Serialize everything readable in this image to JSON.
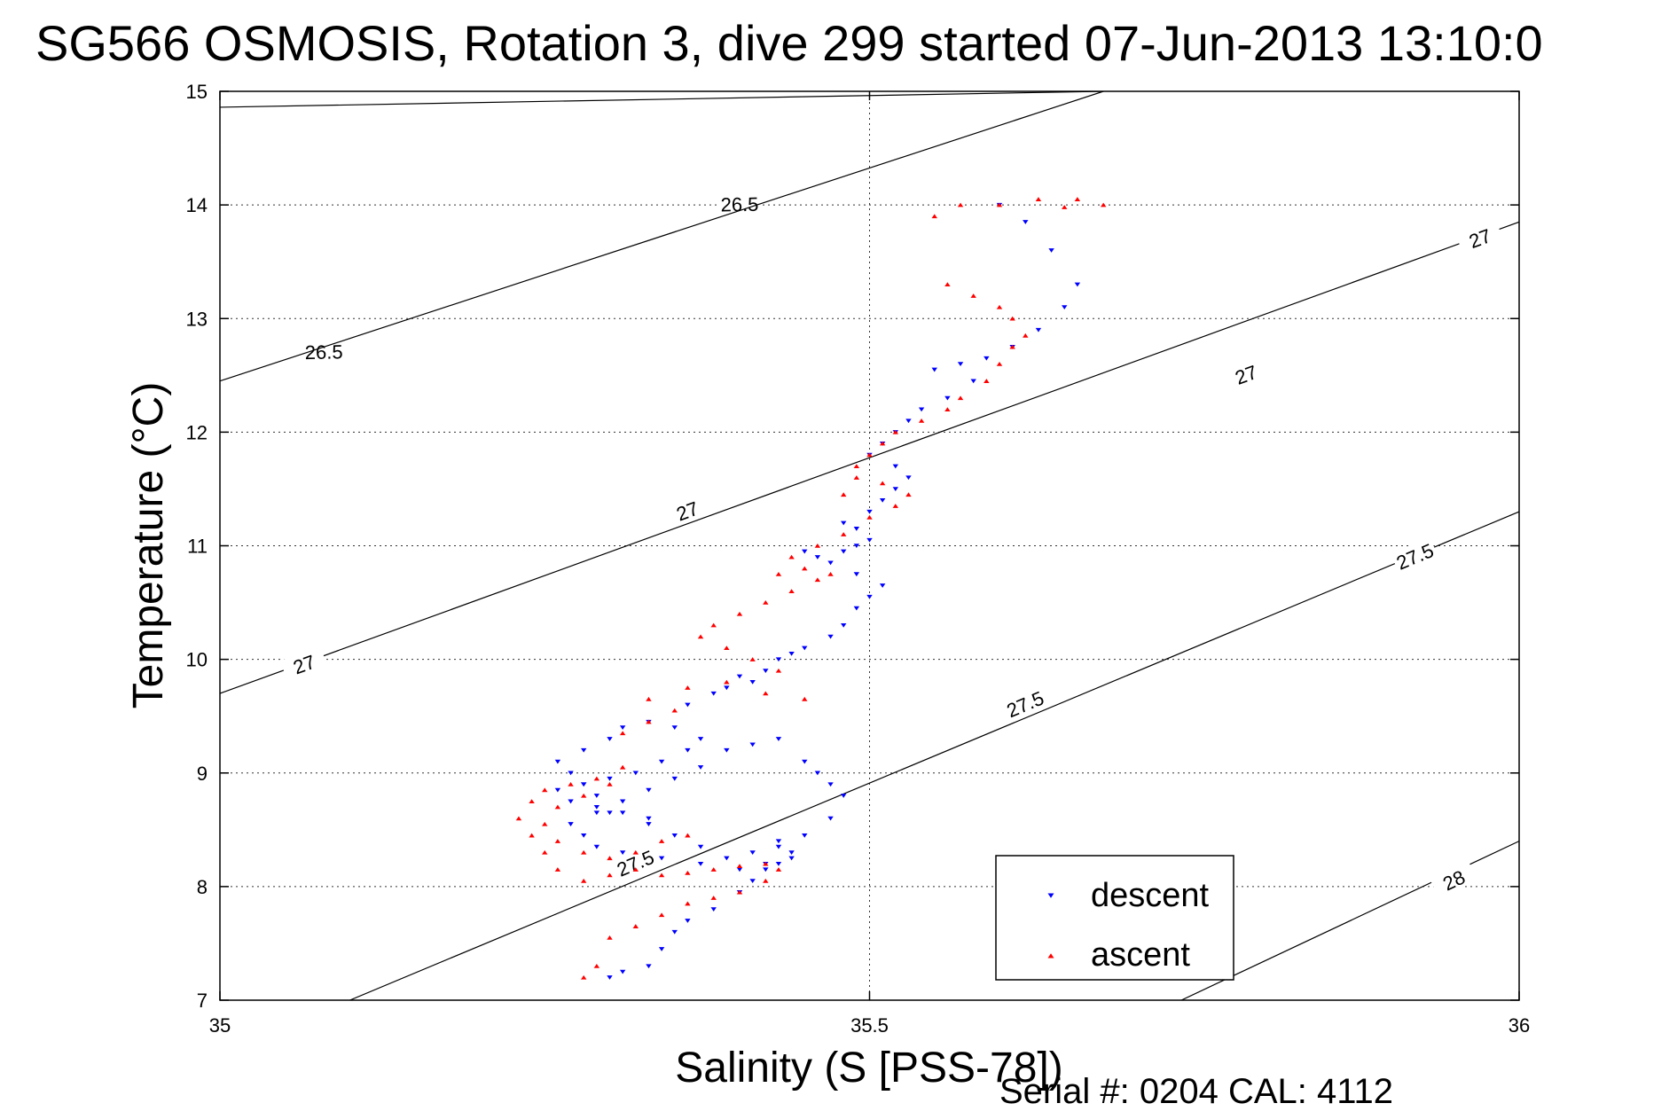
{
  "chart_data": {
    "type": "scatter",
    "title": "SG566 OSMOSIS, Rotation 3, dive 299 started 07-Jun-2013 13:10:0",
    "xlabel": "Salinity (S [PSS-78])",
    "ylabel": "Temperature (°C)",
    "xlim": [
      35,
      36
    ],
    "ylim": [
      7,
      15
    ],
    "x_ticks": [
      "35",
      "35.5",
      "36"
    ],
    "y_ticks": [
      "7",
      "8",
      "9",
      "10",
      "11",
      "12",
      "13",
      "14",
      "15"
    ],
    "grid": true,
    "legend_position": "bottom-right",
    "footer": "Serial #: 0204  CAL: 4112",
    "isopycnals": [
      {
        "level": "26.5",
        "points": [
          [
            35.0,
            14.86
          ],
          [
            35.68,
            15.0
          ]
        ],
        "labels": [
          {
            "x": 35.4,
            "y": 14.0,
            "text": "26.5"
          },
          {
            "x": 35.08,
            "y": 12.7,
            "text": "26.5"
          }
        ]
      },
      {
        "level": "26.5",
        "points": [
          [
            35.0,
            12.45
          ],
          [
            35.68,
            15.0
          ]
        ],
        "labels": []
      },
      {
        "level": "27",
        "points": [
          [
            35.0,
            9.7
          ],
          [
            36.0,
            13.85
          ]
        ],
        "labels": [
          {
            "x": 35.79,
            "y": 12.5,
            "text": "27"
          },
          {
            "x": 35.36,
            "y": 11.3,
            "text": "27"
          },
          {
            "x": 35.065,
            "y": 9.95,
            "text": "27"
          },
          {
            "x": 35.97,
            "y": 13.7,
            "text": "27"
          }
        ]
      },
      {
        "level": "27.5",
        "points": [
          [
            35.1,
            7.0
          ],
          [
            36.0,
            11.3
          ]
        ],
        "labels": [
          {
            "x": 35.62,
            "y": 9.6,
            "text": "27.5"
          },
          {
            "x": 35.92,
            "y": 10.9,
            "text": "27.5"
          },
          {
            "x": 35.32,
            "y": 8.2,
            "text": "27.5"
          }
        ]
      },
      {
        "level": "28",
        "points": [
          [
            35.74,
            7.0
          ],
          [
            36.0,
            8.4
          ]
        ],
        "labels": [
          {
            "x": 35.95,
            "y": 8.05,
            "text": "28"
          }
        ]
      }
    ],
    "series": [
      {
        "name": "descent",
        "color": "#0000ff",
        "marker": "triangle-down",
        "x": [
          35.3,
          35.31,
          35.33,
          35.34,
          35.35,
          35.36,
          35.38,
          35.4,
          35.41,
          35.42,
          35.43,
          35.44,
          35.44,
          35.43,
          35.42,
          35.4,
          35.37,
          35.34,
          35.31,
          35.29,
          35.28,
          35.27,
          35.29,
          35.31,
          35.33,
          35.35,
          35.37,
          35.39,
          35.41,
          35.43,
          35.45,
          35.46,
          35.47,
          35.48,
          35.47,
          35.45,
          35.43,
          35.41,
          35.39,
          35.37,
          35.35,
          35.33,
          35.3,
          35.29,
          35.28,
          35.27,
          35.26,
          35.28,
          35.3,
          35.31,
          35.33,
          35.35,
          35.37,
          35.36,
          35.34,
          35.32,
          35.3,
          35.28,
          35.26,
          35.27,
          35.29,
          35.31,
          35.33,
          35.36,
          35.38,
          35.39,
          35.41,
          35.4,
          35.42,
          35.43,
          35.44,
          35.45,
          35.47,
          35.48,
          35.49,
          35.5,
          35.51,
          35.49,
          35.47,
          35.45,
          35.46,
          35.48,
          35.49,
          35.5,
          35.49,
          35.48,
          35.5,
          35.51,
          35.52,
          35.53,
          35.52,
          35.5,
          35.51,
          35.52,
          35.53,
          35.54,
          35.56,
          35.58,
          35.55,
          35.57,
          35.59,
          35.61,
          35.63,
          35.65,
          35.66,
          35.64,
          35.62,
          35.6
        ],
        "y": [
          7.2,
          7.25,
          7.3,
          7.45,
          7.6,
          7.7,
          7.8,
          7.95,
          8.05,
          8.15,
          8.2,
          8.25,
          8.3,
          8.35,
          8.2,
          8.15,
          8.2,
          8.25,
          8.3,
          8.35,
          8.45,
          8.55,
          8.65,
          8.75,
          8.85,
          8.95,
          9.05,
          9.2,
          9.25,
          9.3,
          9.1,
          9.0,
          8.9,
          8.8,
          8.6,
          8.45,
          8.4,
          8.3,
          8.25,
          8.35,
          8.45,
          8.55,
          8.65,
          8.8,
          8.9,
          9.0,
          9.1,
          9.2,
          9.3,
          9.4,
          9.45,
          9.4,
          9.3,
          9.2,
          9.1,
          9.0,
          8.95,
          8.9,
          8.85,
          8.75,
          8.7,
          8.65,
          8.6,
          9.6,
          9.7,
          9.75,
          9.8,
          9.85,
          9.9,
          10.0,
          10.05,
          10.1,
          10.2,
          10.3,
          10.45,
          10.55,
          10.65,
          10.75,
          10.85,
          10.95,
          10.9,
          10.95,
          11.0,
          11.05,
          11.15,
          11.2,
          11.3,
          11.4,
          11.5,
          11.6,
          11.7,
          11.8,
          11.9,
          12.0,
          12.1,
          12.2,
          12.3,
          12.45,
          12.55,
          12.6,
          12.65,
          12.75,
          12.9,
          13.1,
          13.3,
          13.6,
          13.85,
          14.0
        ],
        "y_note": ""
      },
      {
        "name": "ascent",
        "color": "#ff0000",
        "marker": "triangle-up",
        "x": [
          35.28,
          35.29,
          35.3,
          35.32,
          35.34,
          35.36,
          35.38,
          35.4,
          35.42,
          35.43,
          35.42,
          35.4,
          35.38,
          35.36,
          35.34,
          35.32,
          35.3,
          35.28,
          35.26,
          35.25,
          35.24,
          35.23,
          35.24,
          35.25,
          35.27,
          35.29,
          35.31,
          35.3,
          35.28,
          35.26,
          35.25,
          35.26,
          35.28,
          35.3,
          35.32,
          35.34,
          35.36,
          35.35,
          35.33,
          35.31,
          35.33,
          35.36,
          35.39,
          35.42,
          35.45,
          35.43,
          35.41,
          35.39,
          35.37,
          35.38,
          35.4,
          35.42,
          35.44,
          35.46,
          35.47,
          35.45,
          35.43,
          35.44,
          35.46,
          35.48,
          35.5,
          35.52,
          35.53,
          35.51,
          35.49,
          35.48,
          35.49,
          35.5,
          35.51,
          35.52,
          35.54,
          35.56,
          35.57,
          35.59,
          35.6,
          35.61,
          35.62,
          35.61,
          35.6,
          35.58,
          35.56,
          35.55,
          35.57,
          35.6,
          35.63,
          35.66,
          35.68,
          35.65
        ],
        "y": [
          7.2,
          7.3,
          7.55,
          7.65,
          7.75,
          7.85,
          7.9,
          7.95,
          8.05,
          8.15,
          8.2,
          8.18,
          8.15,
          8.12,
          8.1,
          8.15,
          8.1,
          8.05,
          8.15,
          8.3,
          8.45,
          8.6,
          8.75,
          8.85,
          8.9,
          8.95,
          9.05,
          8.9,
          8.8,
          8.7,
          8.55,
          8.4,
          8.3,
          8.25,
          8.3,
          8.4,
          8.45,
          9.55,
          9.45,
          9.35,
          9.65,
          9.75,
          9.8,
          9.7,
          9.65,
          9.9,
          10.0,
          10.1,
          10.2,
          10.3,
          10.4,
          10.5,
          10.6,
          10.7,
          10.75,
          10.8,
          10.75,
          10.9,
          11.0,
          11.1,
          11.25,
          11.35,
          11.45,
          11.55,
          11.6,
          11.45,
          11.7,
          11.8,
          11.9,
          12.0,
          12.1,
          12.2,
          12.3,
          12.45,
          12.6,
          12.75,
          12.85,
          13.0,
          13.1,
          13.2,
          13.3,
          13.9,
          14.0,
          14.0,
          14.05,
          14.05,
          14.0,
          13.98
        ]
      }
    ]
  }
}
